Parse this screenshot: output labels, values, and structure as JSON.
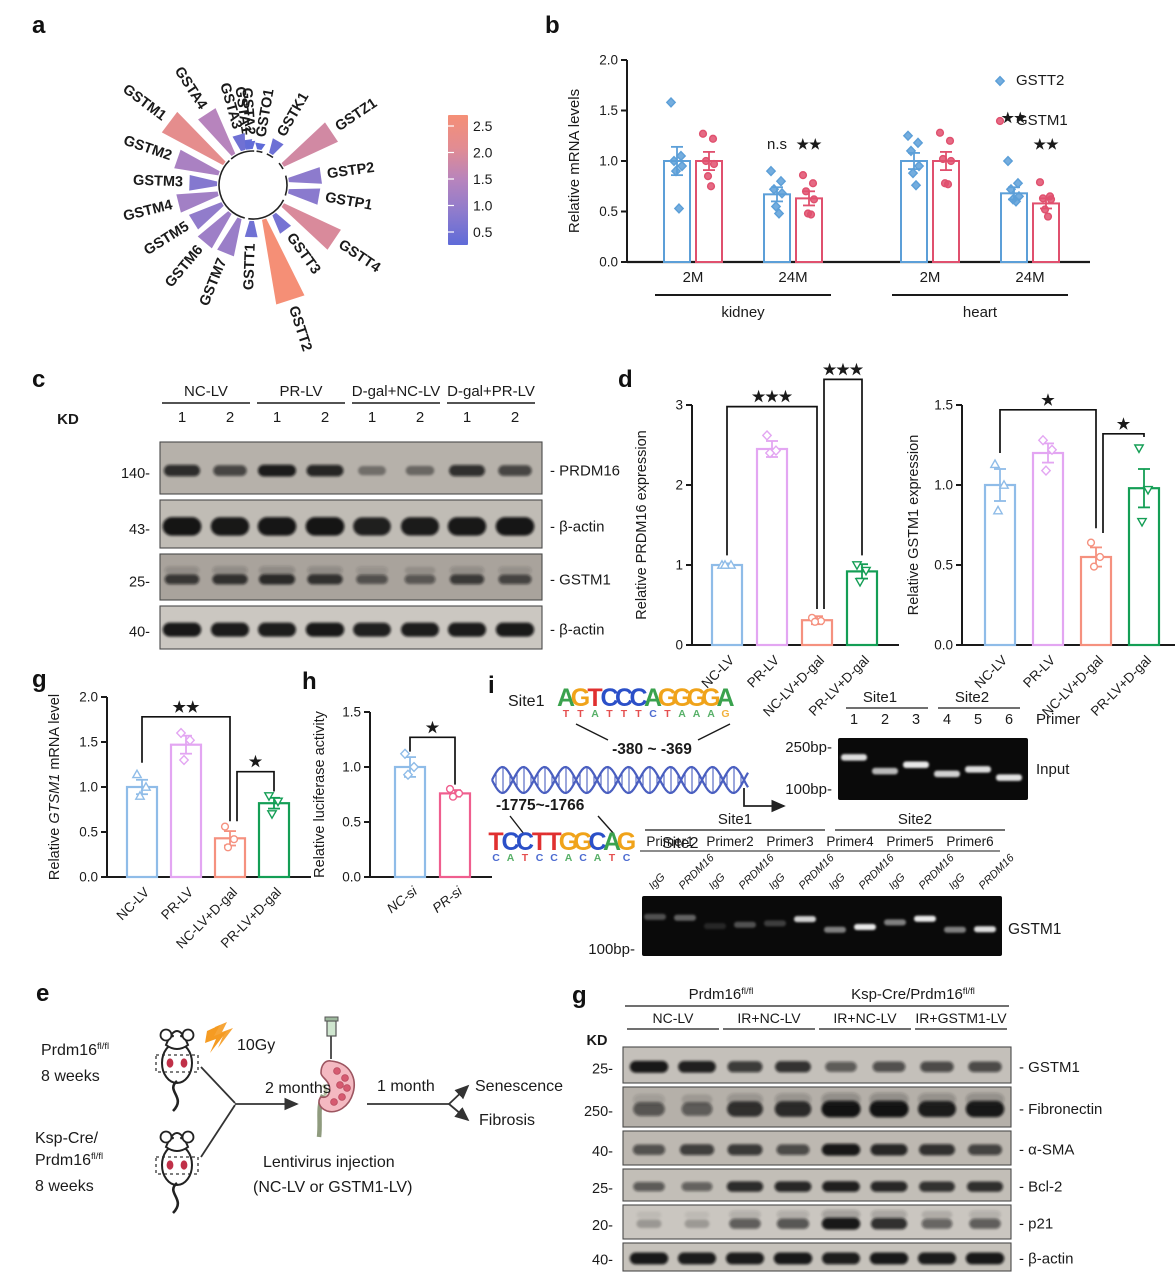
{
  "panels": {
    "a": {
      "letter": "a"
    },
    "b": {
      "letter": "b"
    },
    "c": {
      "letter": "c"
    },
    "d": {
      "letter": "d"
    },
    "e": {
      "letter": "e"
    },
    "g1": {
      "letter": "g"
    },
    "h": {
      "letter": "h"
    },
    "i": {
      "letter": "i"
    },
    "g2": {
      "letter": "g"
    }
  },
  "chart_data": [
    {
      "id": "panel_a",
      "type": "radial-bar",
      "description": "Circular GST family expression plot",
      "genes": [
        {
          "name": "GSTA1",
          "value": 0.3,
          "angle": -8
        },
        {
          "name": "GSTO1",
          "value": 0.2,
          "angle": 10
        },
        {
          "name": "GSTK1",
          "value": 0.45,
          "angle": 30
        },
        {
          "name": "GSTZ1",
          "value": 1.8,
          "angle": 56
        },
        {
          "name": "GSTP2",
          "value": 1.0,
          "angle": 82
        },
        {
          "name": "GSTP1",
          "value": 0.95,
          "angle": 100
        },
        {
          "name": "GSTT4",
          "value": 1.9,
          "angle": 124
        },
        {
          "name": "GSTT3",
          "value": 0.6,
          "angle": 144
        },
        {
          "name": "GSTT2",
          "value": 2.6,
          "angle": 162
        },
        {
          "name": "GSTT1",
          "value": 0.5,
          "angle": 182
        },
        {
          "name": "GSTM7",
          "value": 1.15,
          "angle": 202
        },
        {
          "name": "GSTM6",
          "value": 1.2,
          "angle": 220
        },
        {
          "name": "GSTM5",
          "value": 1.05,
          "angle": 238
        },
        {
          "name": "GSTM4",
          "value": 1.25,
          "angle": 256
        },
        {
          "name": "GSTM3",
          "value": 0.85,
          "angle": 272
        },
        {
          "name": "GSTM2",
          "value": 1.35,
          "angle": 289
        },
        {
          "name": "GSTM1",
          "value": 2.1,
          "angle": 307
        },
        {
          "name": "GSTA4",
          "value": 1.5,
          "angle": 327
        },
        {
          "name": "GSTA3",
          "value": 0.5,
          "angle": 344
        },
        {
          "name": "GSTA2",
          "value": 0.25,
          "angle": 356
        }
      ],
      "colorbar": {
        "ticks": [
          "2.5",
          "2.0",
          "1.5",
          "1.0",
          "0.5"
        ],
        "vmin": 0.2,
        "vmax": 2.6,
        "low_color": "#5f6bd8",
        "high_color": "#f58f76"
      }
    },
    {
      "id": "panel_b",
      "type": "bar",
      "ylabel": "Relative mRNA levels",
      "ylim": [
        0,
        2
      ],
      "yticks": [
        0,
        0.5,
        1.0,
        1.5,
        2.0
      ],
      "ytick_labels": [
        "0.0",
        "0.5",
        "1.0",
        "1.5",
        "2.0"
      ],
      "legend": [
        {
          "label": "GSTT2",
          "color": "#5c9fd8",
          "marker": "diamond"
        },
        {
          "label": "GSTM1",
          "color": "#e0506e",
          "marker": "circle"
        }
      ],
      "slots": [
        {
          "xlabel": "2M",
          "bars": [
            {
              "series": "GSTT2",
              "mean": 1.0,
              "err": 0.14,
              "points": [
                1.58,
                1.05,
                1.0,
                0.95,
                0.9,
                0.53
              ]
            },
            {
              "series": "GSTM1",
              "mean": 1.0,
              "err": 0.09,
              "points": [
                1.27,
                1.22,
                1.0,
                0.97,
                0.85,
                0.75
              ]
            }
          ]
        },
        {
          "xlabel": "24M",
          "bars": [
            {
              "series": "GSTT2",
              "mean": 0.67,
              "err": 0.07,
              "points": [
                0.9,
                0.8,
                0.72,
                0.68,
                0.55,
                0.48
              ]
            },
            {
              "series": "GSTM1",
              "mean": 0.63,
              "err": 0.07,
              "points": [
                0.86,
                0.78,
                0.7,
                0.62,
                0.48,
                0.47
              ]
            }
          ]
        },
        {
          "xlabel": "2M",
          "bars": [
            {
              "series": "GSTT2",
              "mean": 1.0,
              "err": 0.08,
              "points": [
                1.25,
                1.18,
                1.1,
                0.95,
                0.88,
                0.76
              ]
            },
            {
              "series": "GSTM1",
              "mean": 1.0,
              "err": 0.09,
              "points": [
                1.28,
                1.2,
                1.02,
                1.0,
                0.78,
                0.77
              ]
            }
          ]
        },
        {
          "xlabel": "24M",
          "bars": [
            {
              "series": "GSTT2",
              "mean": 0.68,
              "err": 0.06,
              "points": [
                1.0,
                0.78,
                0.72,
                0.65,
                0.62,
                0.6
              ]
            },
            {
              "series": "GSTM1",
              "mean": 0.58,
              "err": 0.05,
              "points": [
                0.79,
                0.65,
                0.63,
                0.62,
                0.52,
                0.45
              ]
            }
          ]
        }
      ],
      "group_spans": [
        {
          "label": "kidney",
          "from": 0,
          "to": 1
        },
        {
          "label": "heart",
          "from": 2,
          "to": 3
        }
      ],
      "sigs": [
        {
          "slot": 1,
          "bar": 0,
          "text": "n.s",
          "y": 1.12
        },
        {
          "slot": 1,
          "bar": 1,
          "text": "★★",
          "y": 1.12
        },
        {
          "slot": 3,
          "bar": 0,
          "text": "★★",
          "y": 1.38
        },
        {
          "slot": 3,
          "bar": 1,
          "text": "★★",
          "y": 1.12
        }
      ]
    },
    {
      "id": "panel_d_left",
      "type": "bar",
      "ylabel_parts": [
        {
          "text": "Relative PRDM16 expression",
          "italic": false
        }
      ],
      "ylim": [
        0,
        3
      ],
      "yticks": [
        0,
        1,
        2,
        3
      ],
      "ytick_labels": [
        "0",
        "1",
        "2",
        "3"
      ],
      "categories": [
        "NC-LV",
        "PR-LV",
        "NC-LV+D-gal",
        "PR-LV+D-gal"
      ],
      "means": [
        1.0,
        2.45,
        0.31,
        0.92
      ],
      "errors": [
        0.02,
        0.1,
        0.05,
        0.09
      ],
      "points": [
        [
          1.0,
          1.0,
          1.0
        ],
        [
          2.62,
          2.43,
          2.4
        ],
        [
          0.34,
          0.3,
          0.29
        ],
        [
          1.0,
          0.93,
          0.79
        ]
      ],
      "colors": [
        "#8fbce8",
        "#e3a6f2",
        "#f5917f",
        "#149e55"
      ],
      "markers": [
        "tri-up",
        "diamond",
        "circle",
        "tri-down"
      ],
      "brackets": [
        {
          "a": 0,
          "b": 2,
          "y": 2.98,
          "la": 1.12,
          "lb": 0.45,
          "label": "★★★"
        },
        {
          "a": 2,
          "b": 3,
          "y": 3.32,
          "la": 0.45,
          "lb": 1.12,
          "label": "★★★",
          "dxa": 7
        }
      ]
    },
    {
      "id": "panel_d_right",
      "type": "bar",
      "ylabel_parts": [
        {
          "text": "Relative GSTM1 expression",
          "italic": false
        }
      ],
      "ylim": [
        0,
        1.5
      ],
      "yticks": [
        0,
        0.5,
        1.0,
        1.5
      ],
      "ytick_labels": [
        "0.0",
        "0.5",
        "1.0",
        "1.5"
      ],
      "categories": [
        "NC-LV",
        "PR-LV",
        "NC-LV+D-gal",
        "PR-LV+D-gal"
      ],
      "means": [
        1.0,
        1.2,
        0.55,
        0.98
      ],
      "errors": [
        0.1,
        0.06,
        0.06,
        0.12
      ],
      "points": [
        [
          1.13,
          1.0,
          0.84
        ],
        [
          1.28,
          1.22,
          1.09
        ],
        [
          0.64,
          0.55,
          0.49
        ],
        [
          1.23,
          0.97,
          0.77
        ]
      ],
      "colors": [
        "#8fbce8",
        "#e3a6f2",
        "#f5917f",
        "#149e55"
      ],
      "markers": [
        "tri-up",
        "diamond",
        "circle",
        "tri-down"
      ],
      "brackets": [
        {
          "a": 0,
          "b": 2,
          "y": 1.47,
          "la": 1.2,
          "lb": 0.73,
          "label": "★"
        },
        {
          "a": 2,
          "b": 3,
          "y": 1.32,
          "la": 0.7,
          "lb": 1.3,
          "label": "★",
          "dxa": 7
        }
      ]
    },
    {
      "id": "panel_g1",
      "type": "bar",
      "ylabel_parts": [
        {
          "text": "Relative ",
          "italic": false
        },
        {
          "text": "GTSM1",
          "italic": true
        },
        {
          "text": " mRNA level",
          "italic": false
        }
      ],
      "ylim": [
        0,
        2
      ],
      "yticks": [
        0,
        0.5,
        1.0,
        1.5,
        2.0
      ],
      "ytick_labels": [
        "0.0",
        "0.5",
        "1.0",
        "1.5",
        "2.0"
      ],
      "categories": [
        "NC-LV",
        "PR-LV",
        "NC-LV+D-gal",
        "PR-LV+D-gal"
      ],
      "means": [
        1.0,
        1.47,
        0.43,
        0.82
      ],
      "errors": [
        0.08,
        0.1,
        0.08,
        0.06
      ],
      "points": [
        [
          1.14,
          1.0,
          0.9
        ],
        [
          1.6,
          1.52,
          1.3
        ],
        [
          0.56,
          0.42,
          0.33
        ],
        [
          0.9,
          0.84,
          0.7
        ]
      ],
      "colors": [
        "#8fbce8",
        "#e3a6f2",
        "#f5917f",
        "#149e55"
      ],
      "markers": [
        "tri-up",
        "diamond",
        "circle",
        "tri-down"
      ],
      "brackets": [
        {
          "a": 0,
          "b": 2,
          "y": 1.78,
          "la": 1.27,
          "lb": 0.62,
          "label": "★★"
        },
        {
          "a": 2,
          "b": 3,
          "y": 1.17,
          "la": 0.62,
          "lb": 0.95,
          "label": "★",
          "dxa": 7
        }
      ]
    },
    {
      "id": "panel_h",
      "type": "bar",
      "ylabel_parts": [
        {
          "text": "Relative luciferase activity",
          "italic": false
        }
      ],
      "ylim": [
        0,
        1.5
      ],
      "yticks": [
        0,
        0.5,
        1.0,
        1.5
      ],
      "ytick_labels": [
        "0.0",
        "0.5",
        "1.0",
        "1.5"
      ],
      "categories": [
        "NC-si",
        "PR-si"
      ],
      "italic_xlabels": true,
      "means": [
        1.0,
        0.76
      ],
      "errors": [
        0.09,
        0.03
      ],
      "points": [
        [
          1.12,
          1.0,
          0.93
        ],
        [
          0.8,
          0.76,
          0.73
        ]
      ],
      "colors": [
        "#8fbce8",
        "#ef5e8e"
      ],
      "markers": [
        "diamond",
        "circle"
      ],
      "brackets": [
        {
          "a": 0,
          "b": 1,
          "y": 1.27,
          "la": 1.14,
          "lb": 0.84,
          "label": "★"
        }
      ]
    }
  ],
  "panel_c": {
    "kd_title": "KD",
    "groups": [
      {
        "label": "NC-LV",
        "lanes": [
          "1",
          "2"
        ]
      },
      {
        "label": "PR-LV",
        "lanes": [
          "1",
          "2"
        ]
      },
      {
        "label": "D-gal+NC-LV",
        "lanes": [
          "1",
          "2"
        ]
      },
      {
        "label": "D-gal+PR-LV",
        "lanes": [
          "1",
          "2"
        ]
      }
    ],
    "rows": [
      {
        "kd": "140-",
        "label": "- PRDM16",
        "bg": "#b6b1aa",
        "band_h": 11,
        "smear": false,
        "bands": [
          0.8,
          0.62,
          0.92,
          0.85,
          0.25,
          0.3,
          0.78,
          0.62
        ]
      },
      {
        "kd": "43-",
        "label": "- β-actin",
        "bg": "#c0bcb5",
        "band_h": 17,
        "smear": false,
        "bands": [
          0.97,
          0.95,
          0.96,
          0.97,
          0.9,
          0.93,
          0.95,
          0.96
        ]
      },
      {
        "kd": "25-",
        "label": "- GSTM1",
        "bg": "#a9a39c",
        "band_h": 10,
        "smear": true,
        "bands": [
          0.7,
          0.75,
          0.8,
          0.75,
          0.5,
          0.45,
          0.68,
          0.6
        ]
      },
      {
        "kd": "40-",
        "label": "- β-actin",
        "bg": "#cbc7c1",
        "band_h": 13,
        "smear": false,
        "bands": [
          0.95,
          0.93,
          0.92,
          0.95,
          0.9,
          0.92,
          0.93,
          0.94
        ]
      }
    ]
  },
  "panel_e": {
    "mouse1_line1": "Prdm16",
    "mouse1_sup": "fl/fl",
    "mouse1_line2": "8 weeks",
    "mouse2_line1": "Ksp-Cre/",
    "mouse2_line2": "Prdm16",
    "mouse2_sup": "fl/fl",
    "mouse2_line3": "8 weeks",
    "dose": "10Gy",
    "t1": "2 months",
    "t2": "1 month",
    "injection1": "Lentivirus injection",
    "injection2": "(NC-LV or GSTM1-LV)",
    "out1": "Senescence",
    "out2": "Fibrosis"
  },
  "panel_i": {
    "site1_label": "Site1",
    "site2_label": "Site2",
    "site1_range": "-380 ~ -369",
    "site2_range": "-1775~-1766",
    "logo1_main": [
      "A",
      "G",
      "T",
      "C",
      "C",
      "C",
      "A",
      "G",
      "G",
      "G",
      "G",
      "A"
    ],
    "logo1_sub": [
      "T",
      "T",
      "A",
      "T",
      "T",
      "T",
      "C",
      "T",
      "A",
      "A",
      "A",
      "G"
    ],
    "logo2_main": [
      "T",
      "C",
      "C",
      "T",
      "T",
      "G",
      "G",
      "C",
      "A",
      "G"
    ],
    "logo2_sub": [
      "C",
      "A",
      "T",
      "C",
      "C",
      "A",
      "C",
      "A",
      "T",
      "C"
    ],
    "letter_colors": {
      "A": "#3aa24e",
      "C": "#2b50c8",
      "G": "#f0a31a",
      "T": "#e03030"
    },
    "gel1": {
      "site1": "Site1",
      "site2": "Site2",
      "lanes": [
        "1",
        "2",
        "3",
        "4",
        "5",
        "6"
      ],
      "primer_label": "Primer",
      "marker_250": "250bp-",
      "marker_100": "100bp-",
      "right_label": "Input",
      "band_y": [
        0.22,
        0.52,
        0.38,
        0.58,
        0.48,
        0.66
      ],
      "band_i": [
        0.9,
        0.75,
        0.95,
        0.85,
        0.9,
        0.92
      ]
    },
    "gel2": {
      "site1": "Site1",
      "site2": "Site2",
      "primers": [
        "Primer1",
        "Primer2",
        "Primer3",
        "Primer4",
        "Primer5",
        "Primer6"
      ],
      "lane_labels": [
        "IgG",
        "PRDM16",
        "IgG",
        "PRDM16",
        "IgG",
        "PRDM16",
        "IgG",
        "PRDM16",
        "IgG",
        "PRDM16",
        "IgG",
        "PRDM16"
      ],
      "marker_100": "100bp-",
      "right_label": "GSTM1",
      "band_y": [
        0.28,
        0.3,
        0.48,
        0.45,
        0.42,
        0.33,
        0.56,
        0.5,
        0.4,
        0.32,
        0.56,
        0.55
      ],
      "band_i": [
        0.3,
        0.38,
        0.12,
        0.3,
        0.22,
        0.85,
        0.5,
        0.95,
        0.5,
        0.95,
        0.5,
        0.9
      ]
    }
  },
  "panel_g2": {
    "kd_title": "KD",
    "supergroups": [
      {
        "label": "Prdm16",
        "sup": "fl/fl",
        "from": 0,
        "to": 3
      },
      {
        "label": "Ksp-Cre/Prdm16",
        "sup": "fl/fl",
        "from": 4,
        "to": 7
      }
    ],
    "groups": [
      {
        "label": "NC-LV",
        "from": 0,
        "to": 1
      },
      {
        "label": "IR+NC-LV",
        "from": 2,
        "to": 3
      },
      {
        "label": "IR+NC-LV",
        "from": 4,
        "to": 5
      },
      {
        "label": "IR+GSTM1-LV",
        "from": 6,
        "to": 7
      }
    ],
    "rows": [
      {
        "kd": "25-",
        "label": "- GSTM1",
        "bg": "#c4c0ba",
        "band_h": 11,
        "smear": false,
        "bands": [
          0.95,
          0.9,
          0.72,
          0.78,
          0.5,
          0.58,
          0.62,
          0.62
        ]
      },
      {
        "kd": "250-",
        "label": "- Fibronectin",
        "bg": "#b5b0a9",
        "band_h": 15,
        "smear": true,
        "bands": [
          0.5,
          0.45,
          0.78,
          0.82,
          1.0,
          1.0,
          0.92,
          0.95
        ]
      },
      {
        "kd": "40-",
        "label": "- α-SMA",
        "bg": "#bdb8b1",
        "band_h": 11,
        "smear": false,
        "bands": [
          0.55,
          0.68,
          0.72,
          0.6,
          0.95,
          0.85,
          0.78,
          0.65
        ]
      },
      {
        "kd": "25-",
        "label": "- Bcl-2",
        "bg": "#c2beb7",
        "band_h": 10,
        "smear": false,
        "bands": [
          0.5,
          0.45,
          0.82,
          0.85,
          0.9,
          0.85,
          0.78,
          0.8
        ]
      },
      {
        "kd": "20-",
        "label": "- p21",
        "bg": "#cac6c0",
        "band_h": 11,
        "smear": true,
        "bands": [
          0.07,
          0.06,
          0.5,
          0.55,
          0.95,
          0.8,
          0.45,
          0.5
        ]
      },
      {
        "kd": "40-",
        "label": "- β-actin",
        "bg": "#c6c2bb",
        "band_h": 11,
        "smear": false,
        "bands": [
          0.95,
          0.93,
          0.93,
          0.95,
          0.92,
          0.95,
          0.93,
          0.95
        ]
      }
    ]
  }
}
